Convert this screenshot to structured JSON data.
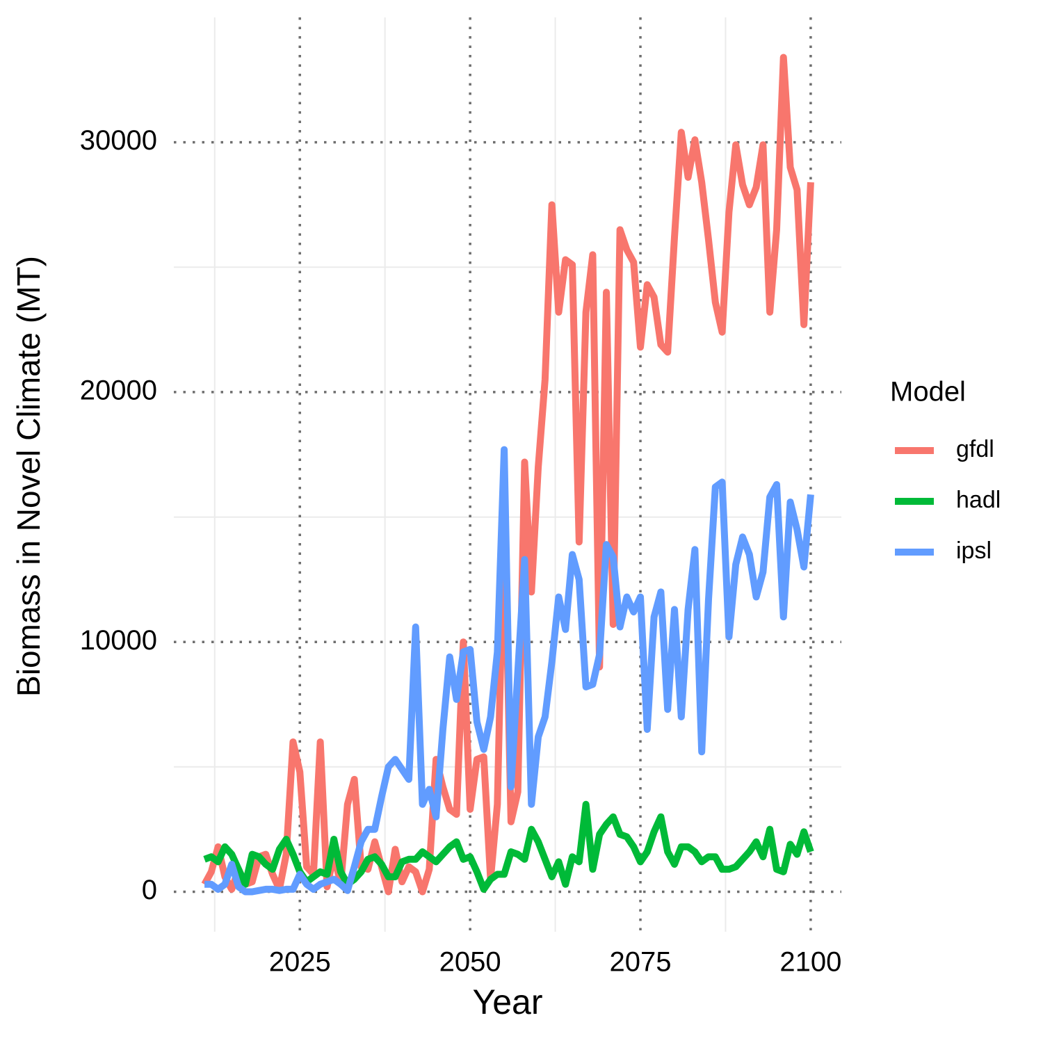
{
  "chart_data": {
    "type": "line",
    "x_label": "Year",
    "y_label": "Biomass in Novel Climate (MT)",
    "legend_title": "Model",
    "x": [
      2011,
      2012,
      2013,
      2014,
      2015,
      2016,
      2017,
      2018,
      2019,
      2020,
      2021,
      2022,
      2023,
      2024,
      2025,
      2026,
      2027,
      2028,
      2029,
      2030,
      2031,
      2032,
      2033,
      2034,
      2035,
      2036,
      2037,
      2038,
      2039,
      2040,
      2041,
      2042,
      2043,
      2044,
      2045,
      2046,
      2047,
      2048,
      2049,
      2050,
      2051,
      2052,
      2053,
      2054,
      2055,
      2056,
      2057,
      2058,
      2059,
      2060,
      2061,
      2062,
      2063,
      2064,
      2065,
      2066,
      2067,
      2068,
      2069,
      2070,
      2071,
      2072,
      2073,
      2074,
      2075,
      2076,
      2077,
      2078,
      2079,
      2080,
      2081,
      2082,
      2083,
      2084,
      2085,
      2086,
      2087,
      2088,
      2089,
      2090,
      2091,
      2092,
      2093,
      2094,
      2095,
      2096,
      2097,
      2098,
      2099,
      2100
    ],
    "series": [
      {
        "name": "gfdl",
        "color": "#F8766D",
        "values": [
          300,
          800,
          1800,
          600,
          100,
          900,
          300,
          400,
          1400,
          1500,
          700,
          100,
          1500,
          6000,
          4800,
          1000,
          700,
          6000,
          200,
          1500,
          300,
          3500,
          4500,
          1000,
          900,
          2000,
          1000,
          0,
          1700,
          400,
          1000,
          800,
          0,
          900,
          5300,
          4200,
          3300,
          3100,
          10000,
          3300,
          5300,
          5400,
          500,
          3500,
          15300,
          2800,
          4000,
          17200,
          12000,
          17000,
          20500,
          27500,
          23200,
          25300,
          25100,
          14000,
          23200,
          25500,
          9000,
          24000,
          10700,
          26500,
          25700,
          25200,
          21800,
          24300,
          23800,
          21900,
          21600,
          26200,
          30400,
          28600,
          30100,
          28400,
          26100,
          23600,
          22400,
          27200,
          29900,
          28300,
          27500,
          28200,
          29900,
          23200,
          26500,
          33400,
          29000,
          28100,
          22700,
          28400
        ]
      },
      {
        "name": "hadl",
        "color": "#00BA38",
        "values": [
          1300,
          1400,
          1200,
          1800,
          1500,
          900,
          300,
          1500,
          1400,
          1100,
          900,
          1700,
          2100,
          1500,
          800,
          400,
          600,
          800,
          700,
          2100,
          800,
          300,
          500,
          800,
          1300,
          1400,
          1100,
          600,
          600,
          1200,
          1300,
          1300,
          1600,
          1400,
          1200,
          1500,
          1800,
          2000,
          1300,
          1400,
          800,
          100,
          500,
          700,
          700,
          1600,
          1500,
          1300,
          2500,
          2000,
          1300,
          600,
          1200,
          300,
          1400,
          1200,
          3500,
          900,
          2300,
          2700,
          3000,
          2300,
          2200,
          1800,
          1200,
          1600,
          2400,
          3000,
          1600,
          1100,
          1800,
          1800,
          1600,
          1200,
          1400,
          1400,
          900,
          900,
          1000,
          1300,
          1600,
          2000,
          1400,
          2500,
          900,
          800,
          1900,
          1500,
          2400,
          1600
        ]
      },
      {
        "name": "ipsl",
        "color": "#619CFF",
        "values": [
          300,
          300,
          100,
          300,
          1100,
          200,
          0,
          0,
          50,
          100,
          100,
          50,
          100,
          100,
          700,
          300,
          100,
          300,
          400,
          500,
          300,
          50,
          1000,
          2000,
          2500,
          2500,
          3800,
          5000,
          5300,
          4900,
          4500,
          10600,
          3500,
          4100,
          3000,
          6500,
          9400,
          7700,
          9600,
          9700,
          6800,
          5700,
          7000,
          9600,
          17700,
          4200,
          8800,
          13300,
          3500,
          6200,
          7000,
          9200,
          11800,
          10500,
          13500,
          12500,
          8200,
          8300,
          9500,
          13900,
          13400,
          10600,
          11800,
          11200,
          11800,
          6500,
          11000,
          12000,
          7300,
          11300,
          7000,
          11300,
          13700,
          5600,
          11700,
          16200,
          16400,
          10200,
          13100,
          14200,
          13500,
          11800,
          12800,
          15800,
          16300,
          11000,
          15600,
          14500,
          13000,
          15900
        ]
      }
    ],
    "xlim": [
      2006.5,
      2104.5
    ],
    "xticks": [
      2025,
      2050,
      2075,
      2100
    ],
    "x_minor_grid": [
      2012.5,
      2037.5,
      2062.5,
      2087.5
    ],
    "ylim": [
      -1600,
      35000
    ],
    "yticks": [
      0,
      10000,
      20000,
      30000
    ],
    "y_minor_grid": [
      5000,
      15000,
      25000
    ],
    "grid": true
  }
}
